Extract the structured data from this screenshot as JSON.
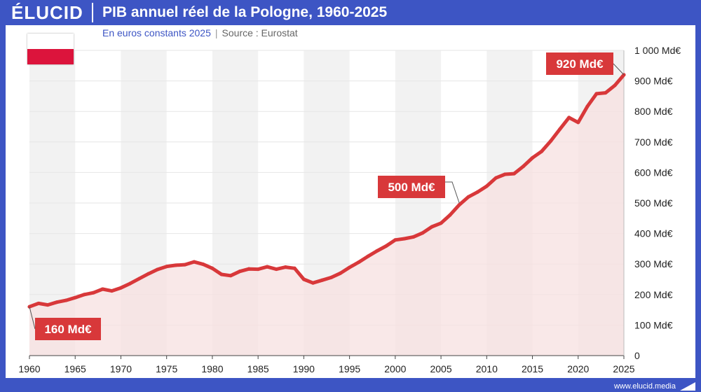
{
  "header": {
    "logo": "ÉLUCID",
    "title": "PIB annuel réel de la Pologne, 1960-2025"
  },
  "subtitle": {
    "units": "En euros constants 2025",
    "source": "Source : Eurostat"
  },
  "footer": {
    "url": "www.elucid.media"
  },
  "colors": {
    "brand": "#3d55c4",
    "line": "#d8383a",
    "fill": "#f7e0e0",
    "band": "#f2f2f2"
  },
  "chart_data": {
    "type": "area",
    "title": "PIB annuel réel de la Pologne, 1960-2025",
    "xlabel": "",
    "ylabel": "",
    "xlim": [
      1960,
      2025
    ],
    "ylim": [
      0,
      1000
    ],
    "x_ticks": [
      "1960",
      "1965",
      "1970",
      "1975",
      "1980",
      "1985",
      "1990",
      "1995",
      "2000",
      "2005",
      "2010",
      "2015",
      "2020",
      "2025"
    ],
    "y_ticks": [
      "0",
      "100 Md€",
      "200 Md€",
      "300 Md€",
      "400 Md€",
      "500 Md€",
      "600 Md€",
      "700 Md€",
      "800 Md€",
      "900 Md€",
      "1 000 Md€"
    ],
    "grid": true,
    "series": [
      {
        "name": "",
        "x": [
          1960,
          1961,
          1962,
          1963,
          1964,
          1965,
          1966,
          1967,
          1968,
          1969,
          1970,
          1971,
          1972,
          1973,
          1974,
          1975,
          1976,
          1977,
          1978,
          1979,
          1980,
          1981,
          1982,
          1983,
          1984,
          1985,
          1986,
          1987,
          1988,
          1989,
          1990,
          1991,
          1992,
          1993,
          1994,
          1995,
          1996,
          1997,
          1998,
          1999,
          2000,
          2001,
          2002,
          2003,
          2004,
          2005,
          2006,
          2007,
          2008,
          2009,
          2010,
          2011,
          2012,
          2013,
          2014,
          2015,
          2016,
          2017,
          2018,
          2019,
          2020,
          2021,
          2022,
          2023,
          2024,
          2025
        ],
        "y": [
          160,
          171,
          166,
          175,
          181,
          190,
          200,
          206,
          218,
          212,
          222,
          236,
          252,
          268,
          282,
          292,
          296,
          298,
          307,
          299,
          286,
          266,
          262,
          276,
          284,
          283,
          291,
          283,
          290,
          286,
          250,
          238,
          247,
          256,
          270,
          289,
          306,
          325,
          343,
          359,
          379,
          383,
          389,
          402,
          422,
          434,
          461,
          494,
          520,
          536,
          555,
          582,
          594,
          596,
          620,
          648,
          669,
          703,
          742,
          780,
          764,
          816,
          858,
          861,
          885,
          920
        ]
      }
    ],
    "annotations": [
      {
        "label": "160 Md€",
        "x": 1960,
        "y": 160
      },
      {
        "label": "500 Md€",
        "x": 2007,
        "y": 500
      },
      {
        "label": "920 Md€",
        "x": 2025,
        "y": 920
      }
    ]
  }
}
